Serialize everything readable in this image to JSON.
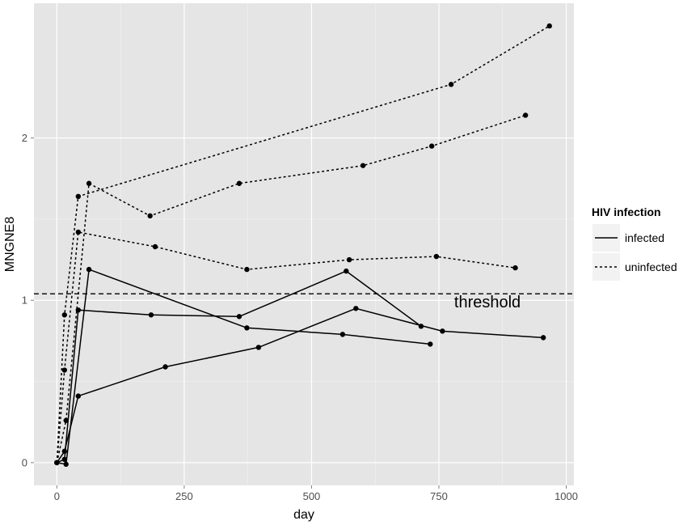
{
  "chart_data": {
    "type": "line",
    "xlabel": "day",
    "ylabel": "MNGNE8",
    "xlim": [
      -45,
      1015
    ],
    "ylim": [
      -0.14,
      2.83
    ],
    "x_ticks": [
      0,
      250,
      500,
      750,
      1000
    ],
    "y_ticks": [
      0,
      1,
      2
    ],
    "x_tick_labels": [
      "0",
      "250",
      "500",
      "750",
      "1000"
    ],
    "y_tick_labels": [
      "0",
      "1",
      "2"
    ],
    "grid": true,
    "panel_background": "#e5e5e5",
    "legend": {
      "title": "HIV infection",
      "position": "right",
      "entries": [
        {
          "label": "infected",
          "linetype": "solid"
        },
        {
          "label": "uninfected",
          "linetype": "dotted"
        }
      ]
    },
    "threshold": {
      "y": 1.04,
      "label": "threshold",
      "label_x": 780,
      "linetype": "dashed"
    },
    "series": [
      {
        "group": "infected",
        "x": [
          0,
          15,
          42,
          185,
          358,
          568,
          715
        ],
        "y": [
          0,
          0.02,
          0.94,
          0.91,
          0.9,
          1.18,
          0.84
        ]
      },
      {
        "group": "infected",
        "x": [
          0,
          18,
          63,
          373,
          561,
          733
        ],
        "y": [
          0,
          -0.01,
          1.19,
          0.83,
          0.79,
          0.73
        ]
      },
      {
        "group": "infected",
        "x": [
          0,
          15,
          42,
          213,
          396,
          587,
          757,
          955
        ],
        "y": [
          0,
          0.07,
          0.41,
          0.59,
          0.71,
          0.95,
          0.81,
          0.77
        ]
      },
      {
        "group": "uninfected",
        "x": [
          0,
          15,
          42,
          774,
          967
        ],
        "y": [
          0,
          0.91,
          1.64,
          2.33,
          2.69
        ]
      },
      {
        "group": "uninfected",
        "x": [
          0,
          18,
          63,
          183,
          358,
          601,
          736,
          920
        ],
        "y": [
          0,
          0.26,
          1.72,
          1.52,
          1.72,
          1.83,
          1.95,
          2.14
        ]
      },
      {
        "group": "uninfected",
        "x": [
          0,
          15,
          42,
          193,
          373,
          574,
          745,
          900
        ],
        "y": [
          0,
          0.57,
          1.42,
          1.33,
          1.19,
          1.25,
          1.27,
          1.2
        ]
      }
    ]
  }
}
